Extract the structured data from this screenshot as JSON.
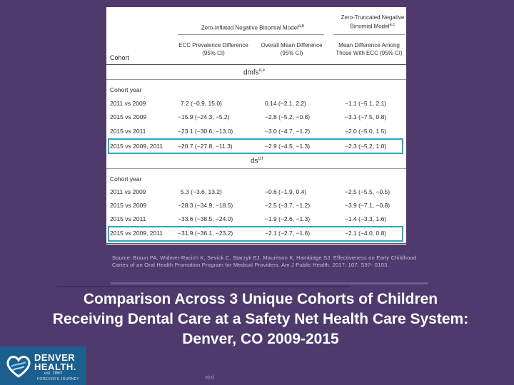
{
  "table": {
    "col_cohort": "Cohort",
    "group_zinb": "Zero-Inflated Negative Binomial Model",
    "group_zinb_sup": "a,b",
    "group_ztnb": "Zero-Truncated Negative Binomial Model",
    "group_ztnb_sup": "a,c",
    "col_prev": "ECC Prevalence Difference (95% CI)",
    "col_mean": "Overall Mean Difference (95% CI)",
    "col_ecc": "Mean Difference Among Those With ECC (95% CI)",
    "section1": "dmfs",
    "section1_sup": "d,e",
    "section2": "ds",
    "section2_sup": "d,f",
    "cohort_year": "Cohort year",
    "rows1": [
      {
        "cohort": "2011 vs 2009",
        "prev": "7.2 (−0.9, 15.0)",
        "mean": "0.14 (−2.1, 2.2)",
        "ecc": "−1.1 (−5.1, 2.1)"
      },
      {
        "cohort": "2015 vs 2009",
        "prev": "−15.9 (−24.3, −5.2)",
        "mean": "−2.8 (−5.2, −0.8)",
        "ecc": "−3.1 (−7.5, 0.8)"
      },
      {
        "cohort": "2015 vs 2011",
        "prev": "−23.1 (−30.6, −13.0)",
        "mean": "−3.0 (−4.7, −1.2)",
        "ecc": "−2.0 (−5.0, 1.5)"
      },
      {
        "cohort": "2015 vs 2009, 2011",
        "prev": "−20.7 (−27.8, −11.3)",
        "mean": "−2.9 (−4.5, −1.3)",
        "ecc": "−2.3 (−5.2, 1.0)"
      }
    ],
    "rows2": [
      {
        "cohort": "2011 vs 2009",
        "prev": "5.3 (−3.6, 13.2)",
        "mean": "−0.6 (−1.9, 0.4)",
        "ecc": "−2.5 (−5.5, −0.5)"
      },
      {
        "cohort": "2015 vs 2009",
        "prev": "−28.3 (−34.9, −18.5)",
        "mean": "−2.5 (−3.7, −1.2)",
        "ecc": "−3.9 (−7.1, −0.8)"
      },
      {
        "cohort": "2015 vs 2011",
        "prev": "−33.6 (−38.5, −24.0)",
        "mean": "−1.9 (−2.6, −1.3)",
        "ecc": "−1.4 (−3.3, 1.6)"
      },
      {
        "cohort": "2015 vs 2009, 2011",
        "prev": "−31.9 (−36.1, −23.2)",
        "mean": "−2.1 (−2.7, −1.6)",
        "ecc": "−2.1 (−4.0, 0.8)"
      }
    ]
  },
  "source": "Source: Braun PA, Widmer-Racich K, Sevick C, Starzyk EJ, Mauritson K, Hambidge SJ. Effectiveness on Early Childhood Caries of an Oral Health Promotion Program for Medical Providers. Am J Public Health. 2017; 107: S97- S103.",
  "title": "Comparison Across 3 Unique Cohorts of Children Receiving Dental Care at a Safety Net Health Care System: Denver, CO 2009-2015",
  "logo": {
    "name1": "DENVER",
    "name2": "HEALTH.",
    "est": "est. 1860",
    "tagline": "FOREVER'S JOURNEY"
  },
  "footer": "ojcd",
  "colors": {
    "background": "#4f3a6e",
    "highlight": "#2aa7c4",
    "logo_bg": "#1b5f8f"
  }
}
